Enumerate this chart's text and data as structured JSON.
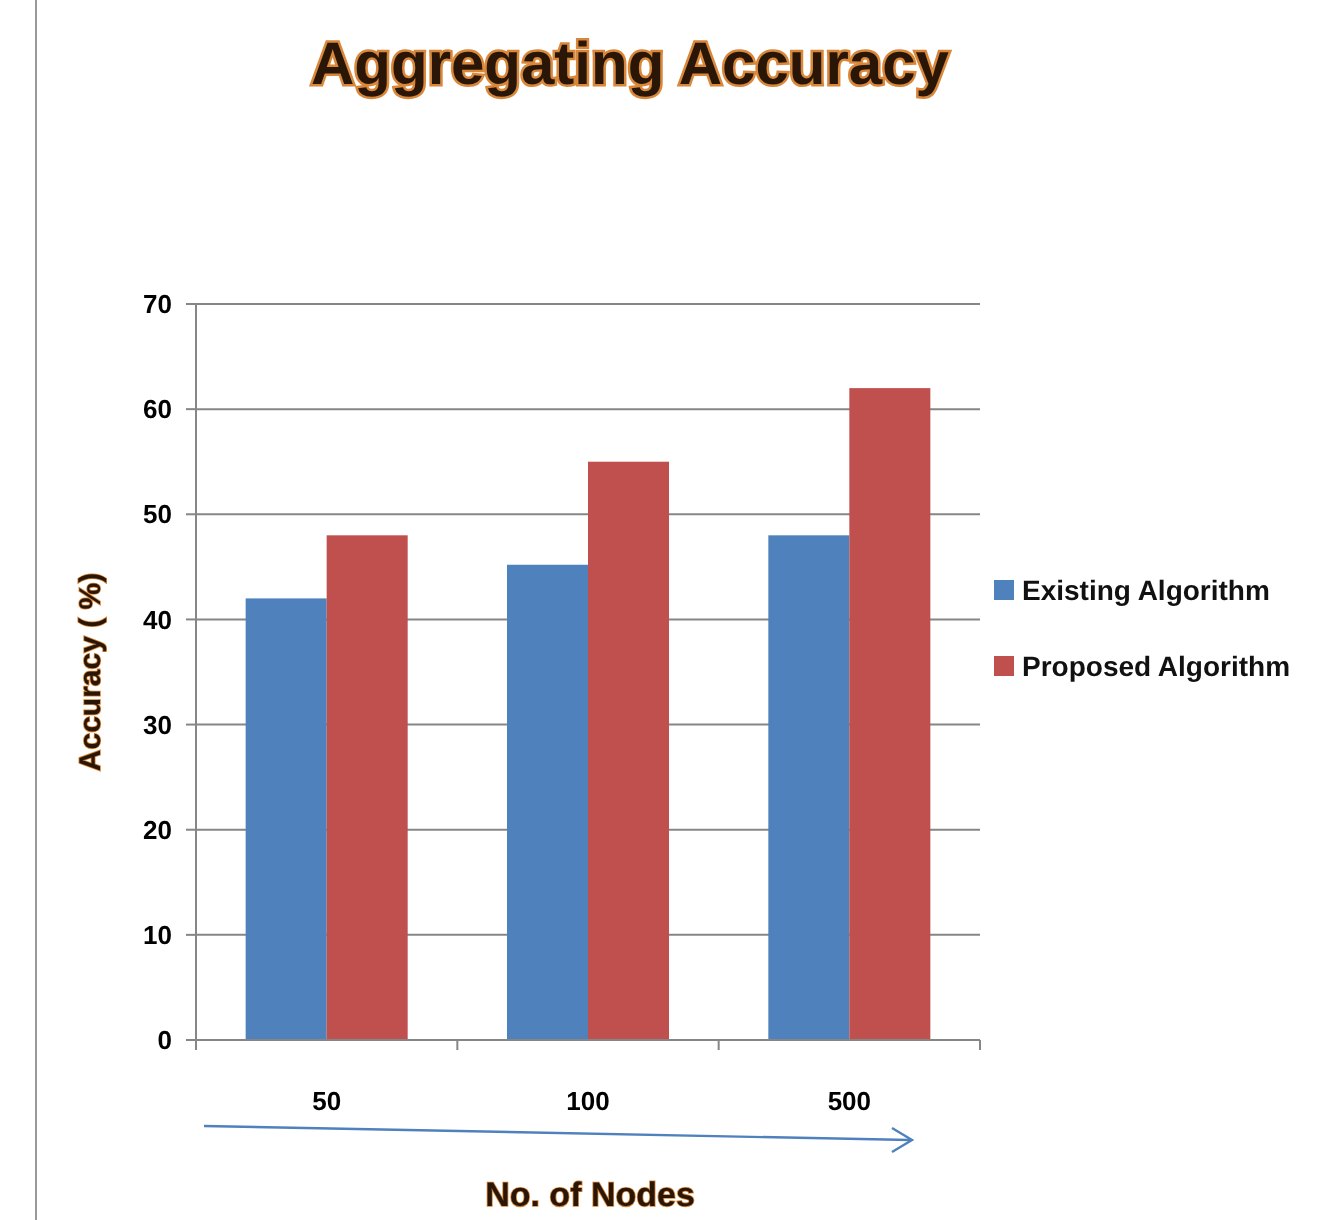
{
  "chart_data": {
    "type": "bar",
    "title": "Aggregating Accuracy",
    "xlabel": "No. of Nodes",
    "ylabel": "Accuracy ( %)",
    "categories": [
      "50",
      "100",
      "500"
    ],
    "series": [
      {
        "name": "Existing Algorithm",
        "color": "#4f81bd",
        "values": [
          42,
          45.2,
          48
        ]
      },
      {
        "name": "Proposed Algorithm",
        "color": "#c0504d",
        "values": [
          48,
          55,
          62
        ]
      }
    ],
    "ylim": [
      0,
      70
    ],
    "yticks": [
      0,
      10,
      20,
      30,
      40,
      50,
      60,
      70
    ],
    "grid": "y",
    "legend": "right"
  }
}
